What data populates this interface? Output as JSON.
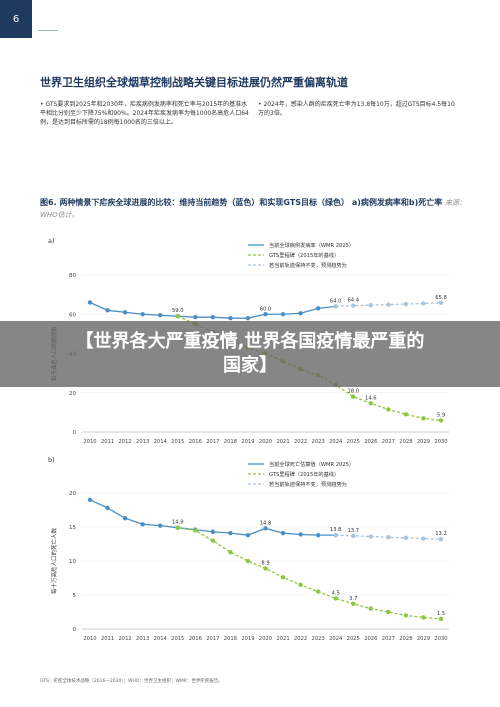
{
  "page": {
    "number": "6"
  },
  "heading": "世界卫生组织全球烟草控制战略关键目标进展仍然严重偏离轨道",
  "bullets": [
    "GTS要求到2025年和2030年，疟疾病例发病率和死亡率与2015年的基准水平相比分别至少下降75%和90%。2024年疟疾发病率为每1000名高危人口64例，是达到目标所需的18例每1000名的三倍以上。",
    "2024年，感染人群的疟疾死亡率为13.8每10万，超过GTS目标4.5每10万的3倍。"
  ],
  "figure": {
    "title": "图6. 两种情景下疟疾全球进展的比较：维持当前趋势（蓝色）和实现GTS目标（绿色） a)病例发病率和b)死亡率",
    "source": "来源：WHO估计。"
  },
  "footnote": "GTS：疟疾全球技术战略（2016—2030）；WHO：世界卫生组织；WMR：世界疟疾报告。",
  "overlay": "【世界各大严重疫情,世界各国疫情最严重的国家】",
  "colors": {
    "current": "#4a8fc4",
    "projection": "#a9c4de",
    "gts": "#8dc63f",
    "axis": "#888888"
  },
  "chart_data": [
    {
      "type": "line",
      "panel_label": "a)",
      "ylabel": "每千高危人口的病例数",
      "ylim": [
        0,
        80
      ],
      "yticks": [
        0,
        20,
        40,
        60,
        80
      ],
      "xticks": [
        "2010",
        "2011",
        "2012",
        "2013",
        "2014",
        "2015",
        "2016",
        "2017",
        "2018",
        "2019",
        "2020",
        "2021",
        "2022",
        "2023",
        "2024",
        "2025",
        "2026",
        "2027",
        "2028",
        "2029",
        "2030"
      ],
      "legend_position": "top-right",
      "series": [
        {
          "name": "当前全球病例发病率（WMR 2025）",
          "style": "current",
          "x": [
            2010,
            2011,
            2012,
            2013,
            2014,
            2015,
            2016,
            2017,
            2018,
            2019,
            2020,
            2021,
            2022,
            2023,
            2024
          ],
          "values": [
            66,
            62,
            61,
            60,
            59.5,
            59.0,
            58.5,
            58.5,
            58.0,
            58.0,
            60.0,
            60.0,
            60.5,
            63.0,
            64.0
          ]
        },
        {
          "name": "GTS里程碑（2015年的基线）",
          "style": "gts",
          "x": [
            2015,
            2016,
            2017,
            2018,
            2019,
            2020,
            2021,
            2022,
            2023,
            2024,
            2025,
            2026,
            2027,
            2028,
            2029,
            2030
          ],
          "values": [
            59.0,
            55,
            51,
            47,
            43,
            40,
            36,
            32,
            29,
            24,
            18.0,
            14.6,
            11.5,
            9,
            7,
            5.9
          ]
        },
        {
          "name": "若当前轨迹保持不变，预测趋势为",
          "style": "projection",
          "x": [
            2024,
            2025,
            2026,
            2027,
            2028,
            2029,
            2030
          ],
          "values": [
            64.0,
            64.4,
            64.6,
            64.9,
            65.2,
            65.5,
            65.8
          ]
        }
      ],
      "data_labels": [
        {
          "x": 2015,
          "y": 59.0,
          "text": "59.0"
        },
        {
          "x": 2020,
          "y": 60.0,
          "text": "60.0"
        },
        {
          "x": 2024,
          "y": 64.0,
          "text": "64.0"
        },
        {
          "x": 2025,
          "y": 64.4,
          "text": "64.4"
        },
        {
          "x": 2030,
          "y": 65.8,
          "text": "65.8"
        },
        {
          "x": 2025,
          "y": 18.0,
          "text": "18.0"
        },
        {
          "x": 2026,
          "y": 14.6,
          "text": "14.6"
        },
        {
          "x": 2030,
          "y": 5.9,
          "text": "5.9"
        }
      ]
    },
    {
      "type": "line",
      "panel_label": "b)",
      "ylabel": "每十万高危人口的死亡人数",
      "ylim": [
        0,
        20
      ],
      "yticks": [
        0,
        5,
        10,
        15,
        20
      ],
      "xticks": [
        "2010",
        "2011",
        "2012",
        "2013",
        "2014",
        "2015",
        "2016",
        "2017",
        "2018",
        "2019",
        "2020",
        "2021",
        "2022",
        "2023",
        "2024",
        "2025",
        "2026",
        "2027",
        "2028",
        "2029",
        "2030"
      ],
      "legend_position": "top-right",
      "series": [
        {
          "name": "当前全球死亡估算值（WMR 2025）",
          "style": "current",
          "x": [
            2010,
            2011,
            2012,
            2013,
            2014,
            2015,
            2016,
            2017,
            2018,
            2019,
            2020,
            2021,
            2022,
            2023,
            2024
          ],
          "values": [
            19.0,
            17.8,
            16.3,
            15.4,
            15.2,
            14.9,
            14.6,
            14.3,
            14.1,
            13.8,
            14.8,
            14.1,
            13.9,
            13.8,
            13.8
          ]
        },
        {
          "name": "GTS里程碑（2015年的基线）",
          "style": "gts",
          "x": [
            2015,
            2016,
            2017,
            2018,
            2019,
            2020,
            2021,
            2022,
            2023,
            2024,
            2025,
            2026,
            2027,
            2028,
            2029,
            2030
          ],
          "values": [
            14.9,
            14.5,
            13.0,
            11.3,
            10.0,
            8.9,
            7.6,
            6.5,
            5.5,
            4.5,
            3.7,
            3.0,
            2.5,
            2.0,
            1.7,
            1.5
          ]
        },
        {
          "name": "若当前轨迹保持不变，预测趋势为",
          "style": "projection",
          "x": [
            2024,
            2025,
            2026,
            2027,
            2028,
            2029,
            2030
          ],
          "values": [
            13.8,
            13.7,
            13.6,
            13.5,
            13.4,
            13.3,
            13.2
          ]
        }
      ],
      "data_labels": [
        {
          "x": 2015,
          "y": 14.9,
          "text": "14.9"
        },
        {
          "x": 2020,
          "y": 14.8,
          "text": "14.8"
        },
        {
          "x": 2024,
          "y": 13.8,
          "text": "13.8"
        },
        {
          "x": 2025,
          "y": 13.7,
          "text": "13.7"
        },
        {
          "x": 2030,
          "y": 13.2,
          "text": "13.2"
        },
        {
          "x": 2020,
          "y": 8.9,
          "text": "8.9"
        },
        {
          "x": 2024,
          "y": 4.5,
          "text": "4.5"
        },
        {
          "x": 2025,
          "y": 3.7,
          "text": "3.7"
        },
        {
          "x": 2030,
          "y": 1.5,
          "text": "1.5"
        }
      ]
    }
  ]
}
